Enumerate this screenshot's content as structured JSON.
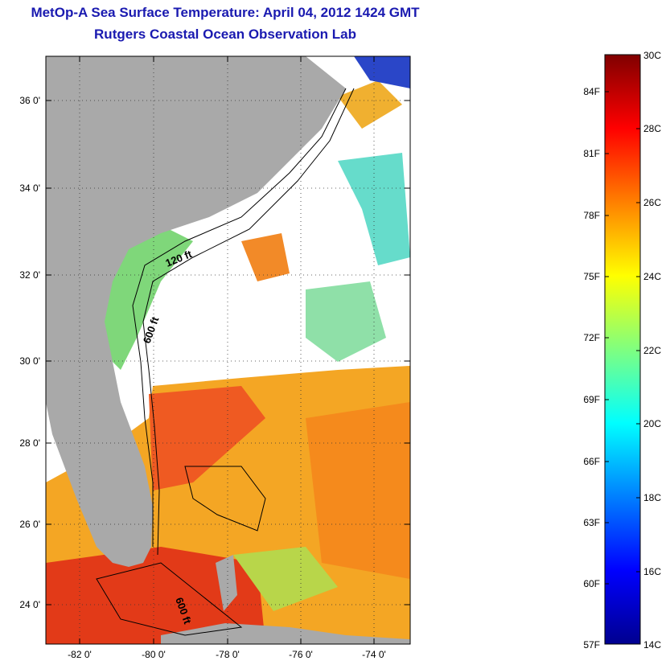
{
  "title": "MetOp-A Sea Surface Temperature:  April 04, 2012 1424 GMT",
  "subtitle": "Rutgers Coastal Ocean Observation Lab",
  "map": {
    "lat_ticks": [
      "36 0'",
      "34 0'",
      "32 0'",
      "30 0'",
      "28 0'",
      "26 0'",
      "24 0'"
    ],
    "lon_ticks": [
      "-82 0'",
      "-80 0'",
      "-78 0'",
      "-76 0'",
      "-74 0'"
    ],
    "contour_labels": [
      "120 ft",
      "600 ft",
      "600 ft"
    ],
    "land_color": "#a9a9a9"
  },
  "colorbar": {
    "celsius_labels": [
      "30C",
      "28C",
      "26C",
      "24C",
      "22C",
      "20C",
      "18C",
      "16C",
      "14C"
    ],
    "fahrenheit_labels": [
      "84F",
      "81F",
      "78F",
      "75F",
      "72F",
      "69F",
      "66F",
      "63F",
      "60F",
      "57F"
    ],
    "min_c": 14,
    "max_c": 30
  }
}
